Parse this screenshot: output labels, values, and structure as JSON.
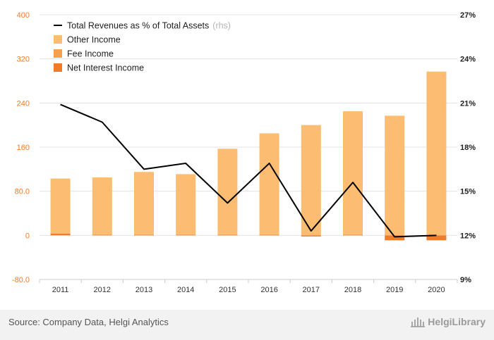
{
  "chart_data": {
    "type": "bar",
    "categories": [
      "2011",
      "2012",
      "2013",
      "2014",
      "2015",
      "2016",
      "2017",
      "2018",
      "2019",
      "2020"
    ],
    "left_axis": {
      "ylim": [
        -80,
        400
      ],
      "ticks": [
        "-80.0",
        "0",
        "80.0",
        "160",
        "240",
        "320",
        "400"
      ],
      "tick_values": [
        -80,
        0,
        80,
        160,
        240,
        320,
        400
      ]
    },
    "right_axis": {
      "ylim": [
        9,
        27
      ],
      "ticks": [
        "9%",
        "12%",
        "15%",
        "18%",
        "21%",
        "24%",
        "27%"
      ],
      "tick_values": [
        9,
        12,
        15,
        18,
        21,
        24,
        27
      ]
    },
    "series": [
      {
        "name": "Net Interest Income",
        "type": "bar",
        "axis": "left",
        "color": "#f07c2a",
        "values": [
          3,
          1,
          1,
          1,
          1,
          1,
          -2,
          1,
          -9,
          -9
        ]
      },
      {
        "name": "Fee Income",
        "type": "bar",
        "axis": "left",
        "color": "#f5a04e",
        "values": [
          0,
          0,
          0,
          0,
          0,
          0,
          0,
          0,
          0,
          0
        ]
      },
      {
        "name": "Other Income",
        "type": "bar",
        "axis": "left",
        "color": "#fcbd73",
        "values": [
          100,
          104,
          114,
          110,
          156,
          184,
          200,
          224,
          217,
          297
        ]
      },
      {
        "name": "Total Revenues as % of Total Assets",
        "type": "line",
        "axis": "right",
        "color": "#000000",
        "values": [
          20.9,
          19.7,
          16.5,
          16.9,
          14.2,
          16.9,
          12.3,
          15.6,
          11.9,
          12.0
        ]
      }
    ],
    "legend": [
      {
        "label": "Total Revenues as % of Total Assets",
        "unit": "(rhs)",
        "marker": "line",
        "color": "#000000"
      },
      {
        "label": "Other Income",
        "unit": "",
        "marker": "square",
        "color": "#fcbd73"
      },
      {
        "label": "Fee Income",
        "unit": "",
        "marker": "square",
        "color": "#f5a04e"
      },
      {
        "label": "Net Interest Income",
        "unit": "",
        "marker": "square",
        "color": "#f07c2a"
      }
    ],
    "legend_placement": "top-left",
    "grid": true
  },
  "footer": {
    "source": "Source: Company Data, Helgi Analytics",
    "logo_text": "HelgiLibrary",
    "logo_icon": "building-icon"
  }
}
